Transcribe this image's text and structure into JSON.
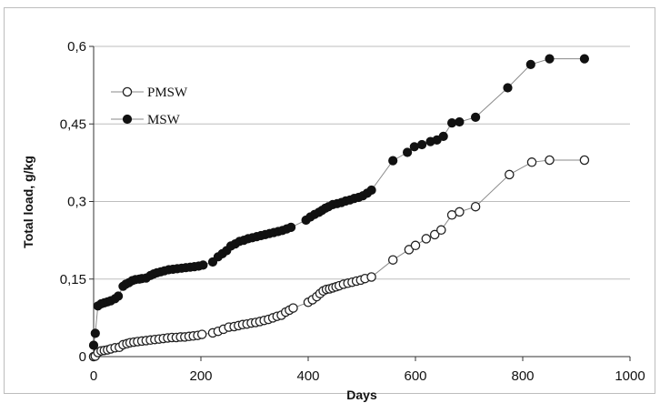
{
  "chart_data": {
    "type": "scatter",
    "title": "",
    "xlabel": "Days",
    "ylabel": "Total load, g/kg",
    "xlim": [
      0,
      1000
    ],
    "ylim": [
      0,
      0.6
    ],
    "x_ticks": [
      0,
      200,
      400,
      600,
      800,
      1000
    ],
    "x_tick_labels": [
      "0",
      "200",
      "400",
      "600",
      "800",
      "1000"
    ],
    "y_ticks": [
      0,
      0.15,
      0.3,
      0.45,
      0.6
    ],
    "y_tick_labels": [
      "0",
      "0,15",
      "0,3",
      "0,45",
      "0,6"
    ],
    "grid": "horizontal",
    "legend_position": "top-left",
    "series": [
      {
        "name": "PMSW",
        "marker": "open-circle",
        "color": "#222222",
        "points": [
          [
            0,
            0
          ],
          [
            3,
            0.001
          ],
          [
            8,
            0.008
          ],
          [
            14,
            0.011
          ],
          [
            20,
            0.012
          ],
          [
            26,
            0.013
          ],
          [
            32,
            0.015
          ],
          [
            40,
            0.017
          ],
          [
            48,
            0.018
          ],
          [
            55,
            0.023
          ],
          [
            62,
            0.025
          ],
          [
            68,
            0.027
          ],
          [
            75,
            0.028
          ],
          [
            82,
            0.029
          ],
          [
            90,
            0.03
          ],
          [
            98,
            0.031
          ],
          [
            106,
            0.032
          ],
          [
            114,
            0.033
          ],
          [
            122,
            0.034
          ],
          [
            130,
            0.035
          ],
          [
            138,
            0.036
          ],
          [
            146,
            0.037
          ],
          [
            154,
            0.037
          ],
          [
            162,
            0.038
          ],
          [
            170,
            0.038
          ],
          [
            178,
            0.039
          ],
          [
            186,
            0.04
          ],
          [
            194,
            0.041
          ],
          [
            202,
            0.043
          ],
          [
            222,
            0.046
          ],
          [
            232,
            0.049
          ],
          [
            242,
            0.053
          ],
          [
            252,
            0.057
          ],
          [
            262,
            0.058
          ],
          [
            270,
            0.06
          ],
          [
            278,
            0.062
          ],
          [
            286,
            0.063
          ],
          [
            294,
            0.065
          ],
          [
            302,
            0.066
          ],
          [
            310,
            0.068
          ],
          [
            318,
            0.07
          ],
          [
            326,
            0.072
          ],
          [
            334,
            0.075
          ],
          [
            342,
            0.078
          ],
          [
            350,
            0.08
          ],
          [
            358,
            0.086
          ],
          [
            365,
            0.09
          ],
          [
            372,
            0.094
          ],
          [
            400,
            0.105
          ],
          [
            408,
            0.11
          ],
          [
            416,
            0.116
          ],
          [
            422,
            0.122
          ],
          [
            428,
            0.127
          ],
          [
            434,
            0.13
          ],
          [
            440,
            0.131
          ],
          [
            446,
            0.133
          ],
          [
            452,
            0.135
          ],
          [
            458,
            0.137
          ],
          [
            466,
            0.14
          ],
          [
            474,
            0.142
          ],
          [
            482,
            0.144
          ],
          [
            490,
            0.146
          ],
          [
            498,
            0.148
          ],
          [
            506,
            0.151
          ],
          [
            518,
            0.154
          ],
          [
            558,
            0.187
          ],
          [
            588,
            0.207
          ],
          [
            600,
            0.215
          ],
          [
            620,
            0.228
          ],
          [
            636,
            0.236
          ],
          [
            648,
            0.245
          ],
          [
            668,
            0.274
          ],
          [
            682,
            0.28
          ],
          [
            712,
            0.29
          ],
          [
            775,
            0.352
          ],
          [
            817,
            0.376
          ],
          [
            850,
            0.38
          ],
          [
            915,
            0.38
          ]
        ]
      },
      {
        "name": "MSW",
        "marker": "filled-circle",
        "color": "#111111",
        "points": [
          [
            0,
            0.022
          ],
          [
            3,
            0.045
          ],
          [
            8,
            0.098
          ],
          [
            14,
            0.102
          ],
          [
            20,
            0.104
          ],
          [
            26,
            0.106
          ],
          [
            32,
            0.108
          ],
          [
            40,
            0.112
          ],
          [
            46,
            0.117
          ],
          [
            55,
            0.136
          ],
          [
            60,
            0.14
          ],
          [
            66,
            0.143
          ],
          [
            72,
            0.147
          ],
          [
            78,
            0.149
          ],
          [
            85,
            0.15
          ],
          [
            90,
            0.151
          ],
          [
            98,
            0.152
          ],
          [
            106,
            0.157
          ],
          [
            112,
            0.16
          ],
          [
            118,
            0.162
          ],
          [
            125,
            0.164
          ],
          [
            132,
            0.166
          ],
          [
            140,
            0.168
          ],
          [
            148,
            0.169
          ],
          [
            156,
            0.17
          ],
          [
            164,
            0.171
          ],
          [
            172,
            0.172
          ],
          [
            180,
            0.173
          ],
          [
            188,
            0.174
          ],
          [
            196,
            0.175
          ],
          [
            204,
            0.177
          ],
          [
            222,
            0.183
          ],
          [
            232,
            0.193
          ],
          [
            240,
            0.199
          ],
          [
            248,
            0.205
          ],
          [
            256,
            0.214
          ],
          [
            264,
            0.218
          ],
          [
            272,
            0.223
          ],
          [
            280,
            0.225
          ],
          [
            288,
            0.228
          ],
          [
            296,
            0.23
          ],
          [
            304,
            0.232
          ],
          [
            312,
            0.234
          ],
          [
            320,
            0.236
          ],
          [
            328,
            0.238
          ],
          [
            336,
            0.24
          ],
          [
            344,
            0.242
          ],
          [
            352,
            0.244
          ],
          [
            360,
            0.247
          ],
          [
            368,
            0.25
          ],
          [
            396,
            0.264
          ],
          [
            404,
            0.27
          ],
          [
            412,
            0.275
          ],
          [
            420,
            0.279
          ],
          [
            426,
            0.283
          ],
          [
            432,
            0.287
          ],
          [
            438,
            0.29
          ],
          [
            446,
            0.294
          ],
          [
            454,
            0.296
          ],
          [
            462,
            0.298
          ],
          [
            470,
            0.301
          ],
          [
            478,
            0.303
          ],
          [
            486,
            0.306
          ],
          [
            494,
            0.308
          ],
          [
            502,
            0.311
          ],
          [
            510,
            0.316
          ],
          [
            518,
            0.322
          ],
          [
            558,
            0.379
          ],
          [
            585,
            0.395
          ],
          [
            598,
            0.406
          ],
          [
            612,
            0.41
          ],
          [
            628,
            0.416
          ],
          [
            640,
            0.419
          ],
          [
            652,
            0.426
          ],
          [
            668,
            0.452
          ],
          [
            682,
            0.454
          ],
          [
            712,
            0.463
          ],
          [
            772,
            0.52
          ],
          [
            815,
            0.565
          ],
          [
            850,
            0.576
          ],
          [
            915,
            0.576
          ]
        ]
      }
    ]
  }
}
